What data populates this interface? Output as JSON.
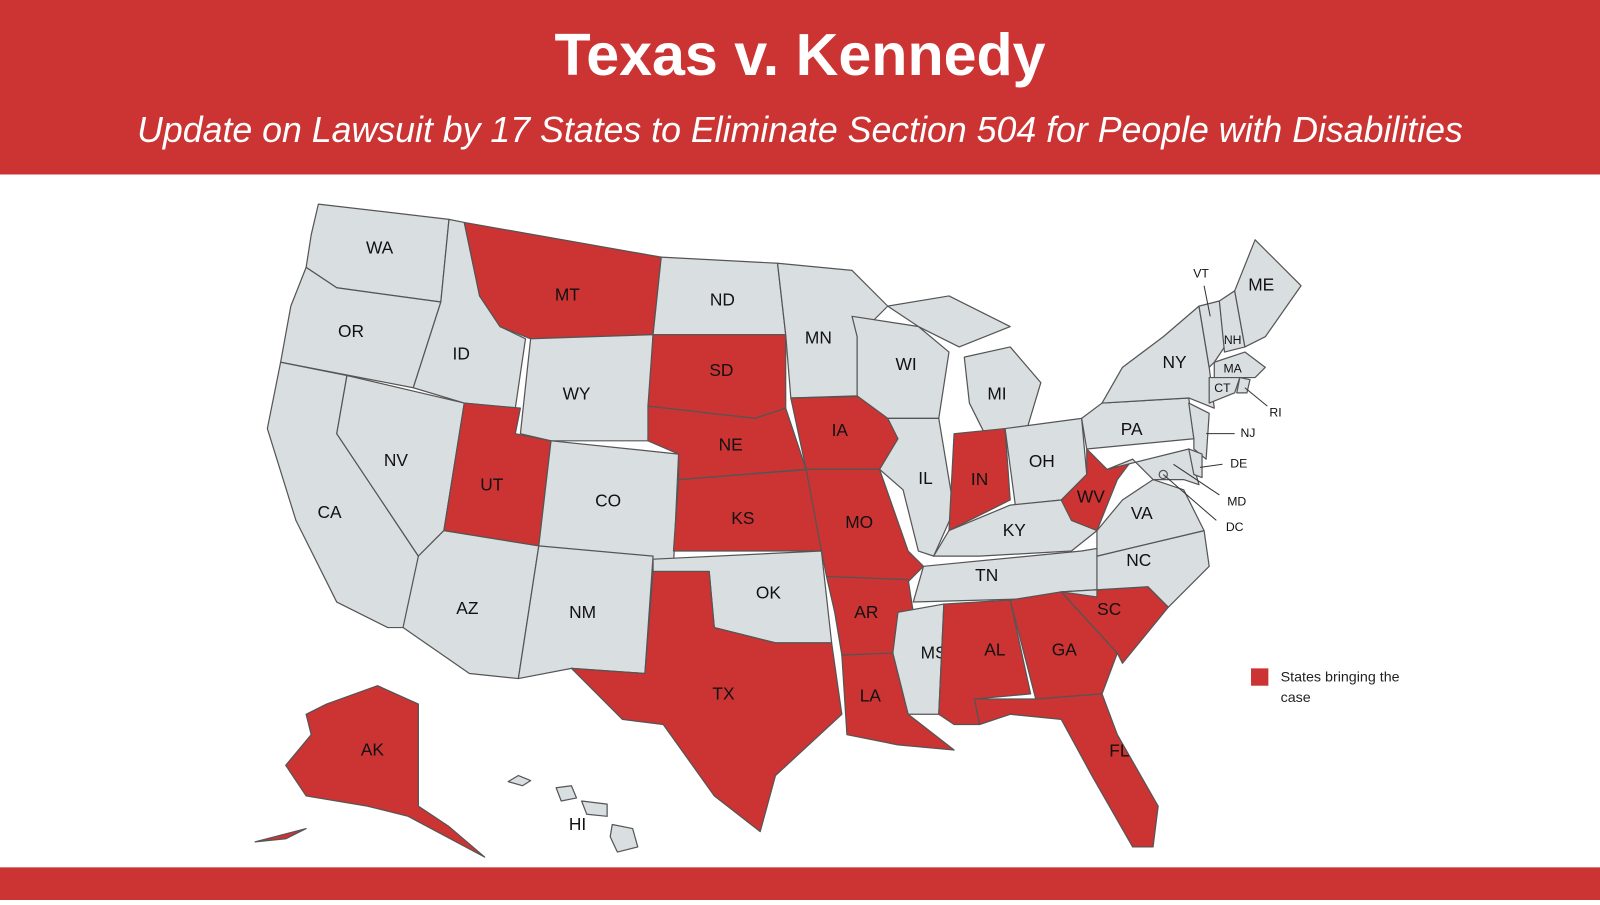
{
  "header": {
    "title": "Texas v. Kennedy",
    "subtitle": "Update on Lawsuit by 17 States to Eliminate Section 504 for People with Disabilities"
  },
  "map": {
    "states": [
      {
        "label": "WA",
        "color": "#d9dee0"
      },
      {
        "label": "OR",
        "color": "#d9dee0"
      },
      {
        "label": "CA",
        "color": "#d9dee0"
      },
      {
        "label": "NV",
        "color": "#d9dee0"
      },
      {
        "label": "ID",
        "color": "#d9dee0"
      },
      {
        "label": "MT",
        "color": "#cc3333"
      },
      {
        "label": "WY",
        "color": "#d9dee0"
      },
      {
        "label": "UT",
        "color": "#cc3333"
      },
      {
        "label": "CO",
        "color": "#d9dee0"
      },
      {
        "label": "AZ",
        "color": "#d9dee0"
      },
      {
        "label": "NM",
        "color": "#d9dee0"
      },
      {
        "label": "ND",
        "color": "#d9dee0"
      },
      {
        "label": "SD",
        "color": "#cc3333"
      },
      {
        "label": "NE",
        "color": "#cc3333"
      },
      {
        "label": "KS",
        "color": "#cc3333"
      },
      {
        "label": "OK",
        "color": "#d9dee0"
      },
      {
        "label": "TX",
        "color": "#cc3333"
      },
      {
        "label": "MN",
        "color": "#d9dee0"
      },
      {
        "label": "IA",
        "color": "#cc3333"
      },
      {
        "label": "MO",
        "color": "#cc3333"
      },
      {
        "label": "AR",
        "color": "#cc3333"
      },
      {
        "label": "LA",
        "color": "#cc3333"
      },
      {
        "label": "WI",
        "color": "#d9dee0"
      },
      {
        "label": "IL",
        "color": "#d9dee0"
      },
      {
        "label": "MI",
        "color": "#d9dee0"
      },
      {
        "label": "IN",
        "color": "#cc3333"
      },
      {
        "label": "OH",
        "color": "#d9dee0"
      },
      {
        "label": "KY",
        "color": "#d9dee0"
      },
      {
        "label": "TN",
        "color": "#d9dee0"
      },
      {
        "label": "MS",
        "color": "#d9dee0"
      },
      {
        "label": "AL",
        "color": "#cc3333"
      },
      {
        "label": "GA",
        "color": "#cc3333"
      },
      {
        "label": "FL",
        "color": "#cc3333"
      },
      {
        "label": "SC",
        "color": "#cc3333"
      },
      {
        "label": "NC",
        "color": "#d9dee0"
      },
      {
        "label": "VA",
        "color": "#d9dee0"
      },
      {
        "label": "WV",
        "color": "#cc3333"
      },
      {
        "label": "PA",
        "color": "#d9dee0"
      },
      {
        "label": "NY",
        "color": "#d9dee0"
      },
      {
        "label": "NJ",
        "color": "#d9dee0"
      },
      {
        "label": "MD",
        "color": "#d9dee0"
      },
      {
        "label": "DE",
        "color": "#d9dee0"
      },
      {
        "label": "VT",
        "color": "#d9dee0"
      },
      {
        "label": "NH",
        "color": "#d9dee0"
      },
      {
        "label": "ME",
        "color": "#d9dee0"
      },
      {
        "label": "MA",
        "color": "#d9dee0"
      },
      {
        "label": "CT",
        "color": "#d9dee0"
      },
      {
        "label": "RI",
        "color": "#d9dee0"
      },
      {
        "label": "DC",
        "color": "#d9dee0"
      },
      {
        "label": "AK",
        "color": "#cc3333"
      },
      {
        "label": "HI",
        "color": "#d9dee0"
      }
    ],
    "legend": {
      "label": "States bringing the case",
      "color": "#cc3333"
    }
  }
}
